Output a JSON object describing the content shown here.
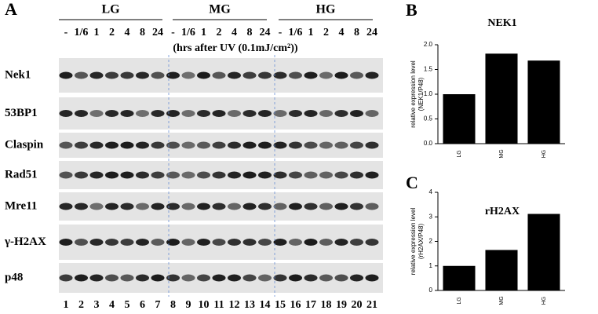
{
  "panel_a": {
    "label": "A",
    "groups": [
      {
        "name": "LG",
        "lanes": [
          "-",
          "1/6",
          "1",
          "2",
          "4",
          "8",
          "24"
        ]
      },
      {
        "name": "MG",
        "lanes": [
          "-",
          "1/6",
          "1",
          "2",
          "4",
          "8",
          "24"
        ]
      },
      {
        "name": "HG",
        "lanes": [
          "-",
          "1/6",
          "1",
          "2",
          "4",
          "8",
          "24"
        ]
      }
    ],
    "subtitle": "(hrs after UV (0.1mJ/cm²))",
    "rows": [
      "Nek1",
      "53BP1",
      "Claspin",
      "Rad51",
      "Mre11",
      "γ-H2AX",
      "p48"
    ],
    "lane_numbers": [
      1,
      2,
      3,
      4,
      5,
      6,
      7,
      8,
      9,
      10,
      11,
      12,
      13,
      14,
      15,
      16,
      17,
      18,
      19,
      20,
      21
    ]
  },
  "chart_data": [
    {
      "type": "bar",
      "panel": "B",
      "title": "NEK1",
      "ylabel": [
        "relative expression level",
        "(NEK1/P48)"
      ],
      "categories": [
        "LG",
        "MG",
        "HG"
      ],
      "values": [
        1.0,
        1.82,
        1.68
      ],
      "color": "#000000",
      "ylim": [
        0,
        2
      ],
      "yticks": [
        {
          "value": 0,
          "label": "0.0"
        },
        0.5,
        {
          "value": 1,
          "label": "1.0"
        },
        1.5,
        {
          "value": 2,
          "label": "2.0"
        }
      ]
    },
    {
      "type": "bar",
      "panel": "C",
      "title": "rH2AX",
      "ylabel": [
        "relative expression level",
        "(rH2AX/P48)"
      ],
      "categories": [
        "LG",
        "MG",
        "HG"
      ],
      "values": [
        1.0,
        1.65,
        3.12
      ],
      "color": "#000000",
      "ylim": [
        0,
        4
      ],
      "yticks": [
        0,
        1,
        2,
        3,
        4
      ]
    }
  ]
}
